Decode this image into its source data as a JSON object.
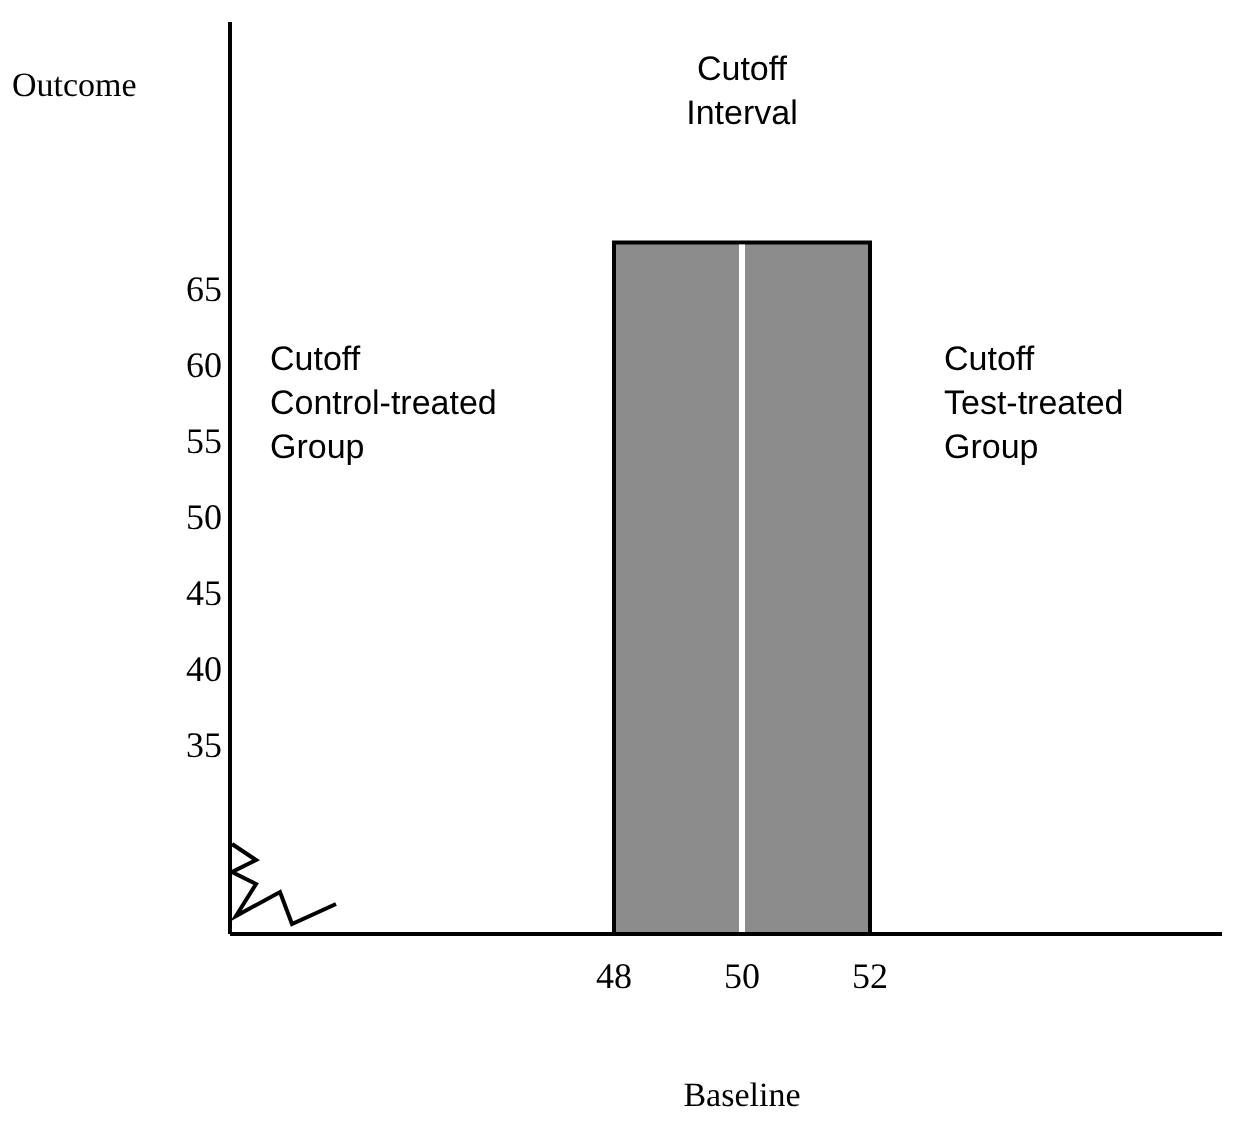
{
  "chart_data": {
    "type": "area",
    "xlabel": "Baseline",
    "ylabel": "Outcome",
    "xlim": [
      42,
      57.5
    ],
    "ylim": [
      22.5,
      82.5
    ],
    "xticks": [
      48,
      50,
      52
    ],
    "yticks": [
      35,
      40,
      45,
      50,
      55,
      60,
      65
    ],
    "x": [
      48,
      52
    ],
    "series": [
      {
        "color": "#8c8c8c",
        "values": [
          68,
          68
        ]
      }
    ],
    "ref_lines": [
      {
        "axis": "x",
        "value": 50,
        "color": "#ffffff"
      }
    ],
    "annotations": [
      "Cutoff\nControl-treated\nGroup",
      "Cutoff\nInterval",
      "Cutoff\nTest-treated\nGroup"
    ]
  }
}
